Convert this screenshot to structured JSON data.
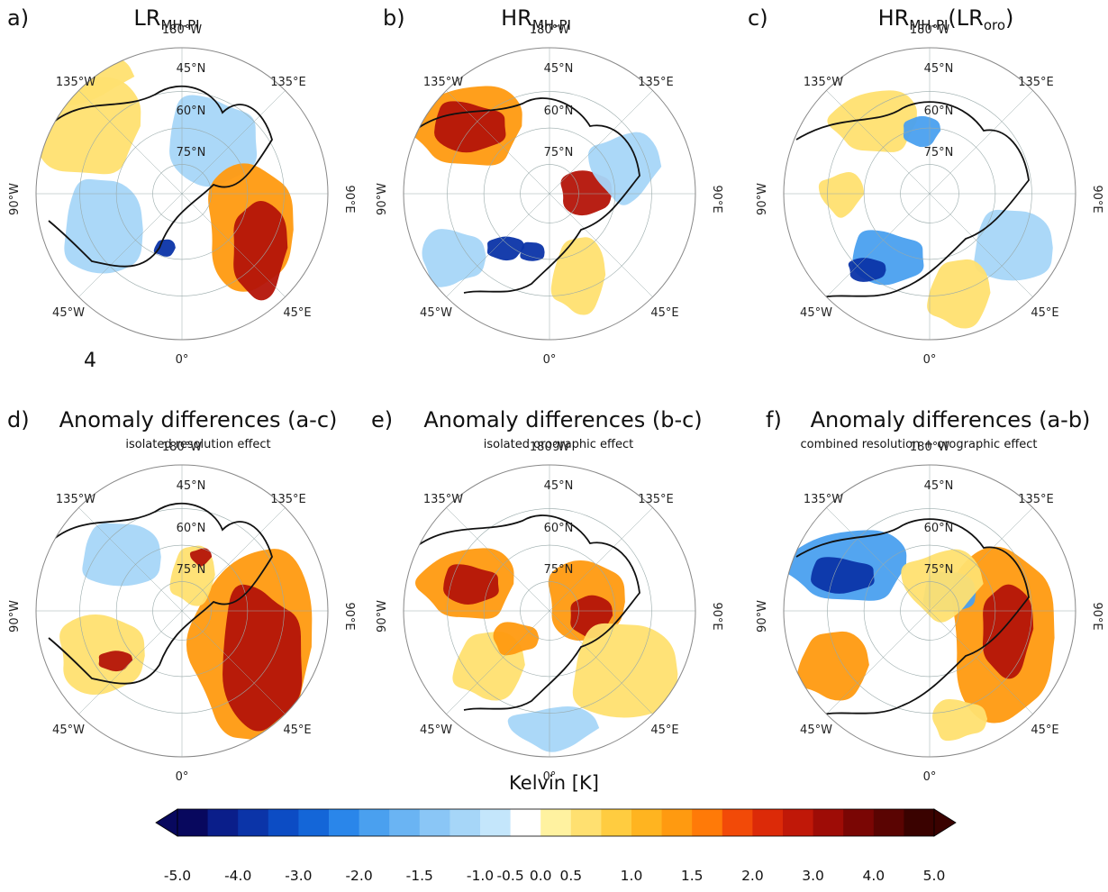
{
  "panels": [
    {
      "letter": "a)",
      "title": {
        "main": "LR",
        "sub": "MH-PI",
        "after": ""
      },
      "subtitle": "",
      "grid_labels": {
        "top": "180°W",
        "tr": "135°E",
        "tl": "135°W",
        "right": "90°E",
        "left": "90°W",
        "br": "45°E",
        "bl": "45°W",
        "bottom": "0°",
        "lat45": "45°N",
        "lat60": "60°N",
        "lat75": "75°N"
      }
    },
    {
      "letter": "b)",
      "title": {
        "main": "HR",
        "sub": "MH-PI",
        "after": ""
      },
      "subtitle": "",
      "grid_labels": {
        "top": "180°W",
        "tr": "135°E",
        "tl": "135°W",
        "right": "90°E",
        "left": "90°W",
        "br": "45°E",
        "bl": "45°W",
        "bottom": "0°",
        "lat45": "45°N",
        "lat60": "60°N",
        "lat75": "75°N"
      }
    },
    {
      "letter": "c)",
      "title": {
        "main": "HR",
        "sub": "MH-PI",
        "after": "(LR",
        "after_sub": "oro",
        "close": ")"
      },
      "subtitle": "",
      "grid_labels": {
        "top": "180°W",
        "tr": "135°E",
        "tl": "135°W",
        "right": "90°E",
        "left": "90°W",
        "br": "45°E",
        "bl": "45°W",
        "bottom": "0°",
        "lat45": "45°N",
        "lat60": "60°N",
        "lat75": "75°N"
      }
    },
    {
      "letter": "d)",
      "title": {
        "main": "Anomaly differences (a-c)"
      },
      "subtitle": "isolated resolution effect",
      "grid_labels": {
        "top": "180°W",
        "tr": "135°E",
        "tl": "135°W",
        "right": "90°E",
        "left": "90°W",
        "br": "45°E",
        "bl": "45°W",
        "bottom": "0°",
        "lat45": "45°N",
        "lat60": "60°N",
        "lat75": "75°N"
      }
    },
    {
      "letter": "e)",
      "title": {
        "main": "Anomaly differences (b-c)"
      },
      "subtitle": "isolated orographic effect",
      "grid_labels": {
        "top": "180°W",
        "tr": "135°E",
        "tl": "135°W",
        "right": "90°E",
        "left": "90°W",
        "br": "45°E",
        "bl": "45°W",
        "bottom": "0°",
        "lat45": "45°N",
        "lat60": "60°N",
        "lat75": "75°N"
      }
    },
    {
      "letter": "f)",
      "title": {
        "main": "Anomaly differences (a-b)"
      },
      "subtitle": "combined resolution + orographic effect",
      "grid_labels": {
        "top": "180°W",
        "tr": "135°E",
        "tl": "135°W",
        "right": "90°E",
        "left": "90°W",
        "br": "45°E",
        "bl": "45°W",
        "bottom": "0°",
        "lat45": "45°N",
        "lat60": "60°N",
        "lat75": "75°N"
      }
    }
  ],
  "stray_mark": "4",
  "colorbar": {
    "title": "Kelvin [K]",
    "colors": [
      "#08085e",
      "#0a1e8a",
      "#0b34a8",
      "#0c4cc4",
      "#1466d8",
      "#2a86ea",
      "#4aa0ef",
      "#6ab4f3",
      "#8ac6f6",
      "#a6d6f8",
      "#c4e6fb",
      "#ffffff",
      "#fff2a0",
      "#ffe070",
      "#ffcc40",
      "#ffb420",
      "#ff9a10",
      "#ff7a08",
      "#f24a08",
      "#dc2a08",
      "#c01808",
      "#9e0c06",
      "#7a0604",
      "#5a0402",
      "#3a0200"
    ],
    "tick_labels": [
      "-5.0",
      "-4.0",
      "-3.0",
      "-2.0",
      "-1.5",
      "-1.0",
      "-0.5",
      "0.0",
      "0.5",
      "1.0",
      "1.5",
      "2.0",
      "3.0",
      "4.0",
      "5.0"
    ],
    "tick_color_index": [
      0,
      2,
      4,
      6,
      8,
      10,
      11,
      12,
      13,
      15,
      17,
      19,
      21,
      23,
      25
    ]
  },
  "colors": {
    "warm_light": "#ffe070",
    "warm_mid": "#ff9a10",
    "warm_dark": "#b41408",
    "cool_light": "#a6d6f8",
    "cool_mid": "#4aa0ef",
    "cool_dark": "#0b34a8",
    "coast": "#111111"
  }
}
